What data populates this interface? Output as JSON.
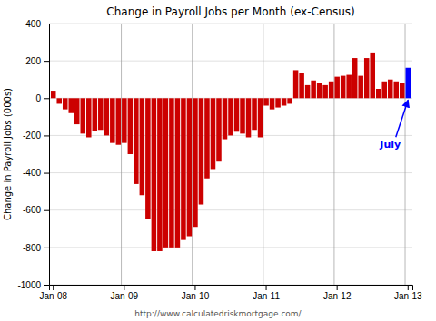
{
  "chart_data": {
    "type": "bar",
    "title": "Change in Payroll Jobs per Month (ex-Census)",
    "ylabel": "Change in Payroll Jobs (000s)",
    "footer": "http://www.calculatedriskmortgage.com/",
    "annotations": [
      {
        "text": "July",
        "color": "#0000ff"
      }
    ],
    "categories": [
      "Jan-08",
      null,
      null,
      null,
      null,
      null,
      null,
      null,
      null,
      null,
      null,
      null,
      "Jan-09",
      null,
      null,
      null,
      null,
      null,
      null,
      null,
      null,
      null,
      null,
      null,
      "Jan-10",
      null,
      null,
      null,
      null,
      null,
      null,
      null,
      null,
      null,
      null,
      null,
      "Jan-11",
      null,
      null,
      null,
      null,
      null,
      null,
      null,
      null,
      null,
      null,
      null,
      "Jan-12",
      null,
      null,
      null,
      null,
      null,
      null,
      null,
      null,
      null,
      null,
      null,
      "Jan-13"
    ],
    "values": [
      40,
      -30,
      -60,
      -80,
      -140,
      -190,
      -210,
      -175,
      -170,
      -200,
      -240,
      -250,
      -240,
      -300,
      -460,
      -520,
      -650,
      -820,
      -820,
      -800,
      -800,
      -800,
      -760,
      -740,
      -690,
      -570,
      -430,
      -380,
      -340,
      -220,
      -200,
      -180,
      -190,
      -210,
      -170,
      -210,
      -40,
      -60,
      -50,
      -40,
      -30,
      150,
      135,
      70,
      95,
      80,
      70,
      90,
      115,
      120,
      125,
      215,
      120,
      215,
      245,
      50,
      90,
      100,
      90,
      80,
      163
    ],
    "colors": [
      "#cc0000",
      "#cc0000",
      "#cc0000",
      "#cc0000",
      "#cc0000",
      "#cc0000",
      "#cc0000",
      "#cc0000",
      "#cc0000",
      "#cc0000",
      "#cc0000",
      "#cc0000",
      "#cc0000",
      "#cc0000",
      "#cc0000",
      "#cc0000",
      "#cc0000",
      "#cc0000",
      "#cc0000",
      "#cc0000",
      "#cc0000",
      "#cc0000",
      "#cc0000",
      "#cc0000",
      "#cc0000",
      "#cc0000",
      "#cc0000",
      "#cc0000",
      "#cc0000",
      "#cc0000",
      "#cc0000",
      "#cc0000",
      "#cc0000",
      "#cc0000",
      "#cc0000",
      "#cc0000",
      "#cc0000",
      "#cc0000",
      "#cc0000",
      "#cc0000",
      "#cc0000",
      "#cc0000",
      "#cc0000",
      "#cc0000",
      "#cc0000",
      "#cc0000",
      "#cc0000",
      "#cc0000",
      "#cc0000",
      "#cc0000",
      "#cc0000",
      "#cc0000",
      "#cc0000",
      "#cc0000",
      "#cc0000",
      "#cc0000",
      "#cc0000",
      "#cc0000",
      "#cc0000",
      "#cc0000",
      "#0000ff"
    ],
    "ylim": [
      -1000,
      400
    ],
    "yticks": [
      -1000,
      -800,
      -600,
      -400,
      -200,
      0,
      200,
      400
    ],
    "grid": true
  }
}
